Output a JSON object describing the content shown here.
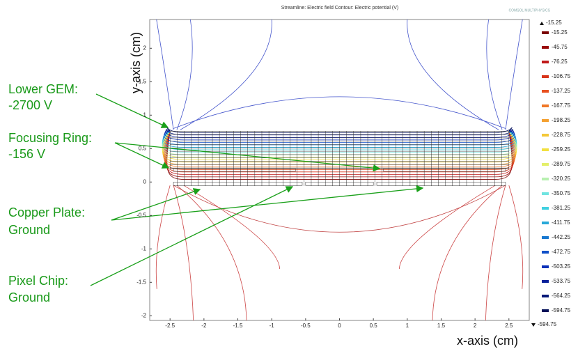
{
  "chart_data": {
    "type": "contour",
    "title": "Streamline: Electric field  Contour: Electric potential (V)",
    "logo_text": "COMSOL MULTIPHYSICS",
    "x_label": "x-axis (cm)",
    "y_label": "y-axis (cm)",
    "xlim": [
      -2.8,
      2.8
    ],
    "ylim": [
      -2.07,
      2.43
    ],
    "xticks": [
      -2.5,
      -2,
      -1.5,
      -1,
      -0.5,
      0,
      0.5,
      1,
      1.5,
      2,
      2.5
    ],
    "yticks": [
      -2,
      -1.5,
      -1,
      -0.5,
      0,
      0.5,
      1,
      1.5,
      2
    ],
    "colorbar": {
      "max": -15.25,
      "min": -594.75,
      "levels": [
        -15.25,
        -45.75,
        -76.25,
        -106.75,
        -137.25,
        -167.75,
        -198.25,
        -228.75,
        -259.25,
        -289.75,
        -320.25,
        -350.75,
        -381.25,
        -411.75,
        -442.25,
        -472.75,
        -503.25,
        -533.75,
        -564.25,
        -594.75
      ],
      "colors": [
        "#7a0000",
        "#9a0a0a",
        "#c01a1a",
        "#d8341a",
        "#e85020",
        "#f07828",
        "#f4a030",
        "#f4c838",
        "#f2e040",
        "#e4ef6a",
        "#b8f0b0",
        "#70e4e0",
        "#40d0e0",
        "#28a8d8",
        "#1878d0",
        "#1050c8",
        "#0a30b8",
        "#08209a",
        "#061878",
        "#041058"
      ]
    },
    "annotations": [
      [
        "Lower GEM:",
        "-2700 V"
      ],
      [
        "Focusing Ring:",
        "-156 V"
      ],
      [
        "Copper Plate:",
        " Ground"
      ],
      [
        "Pixel Chip:",
        "Ground"
      ]
    ]
  }
}
